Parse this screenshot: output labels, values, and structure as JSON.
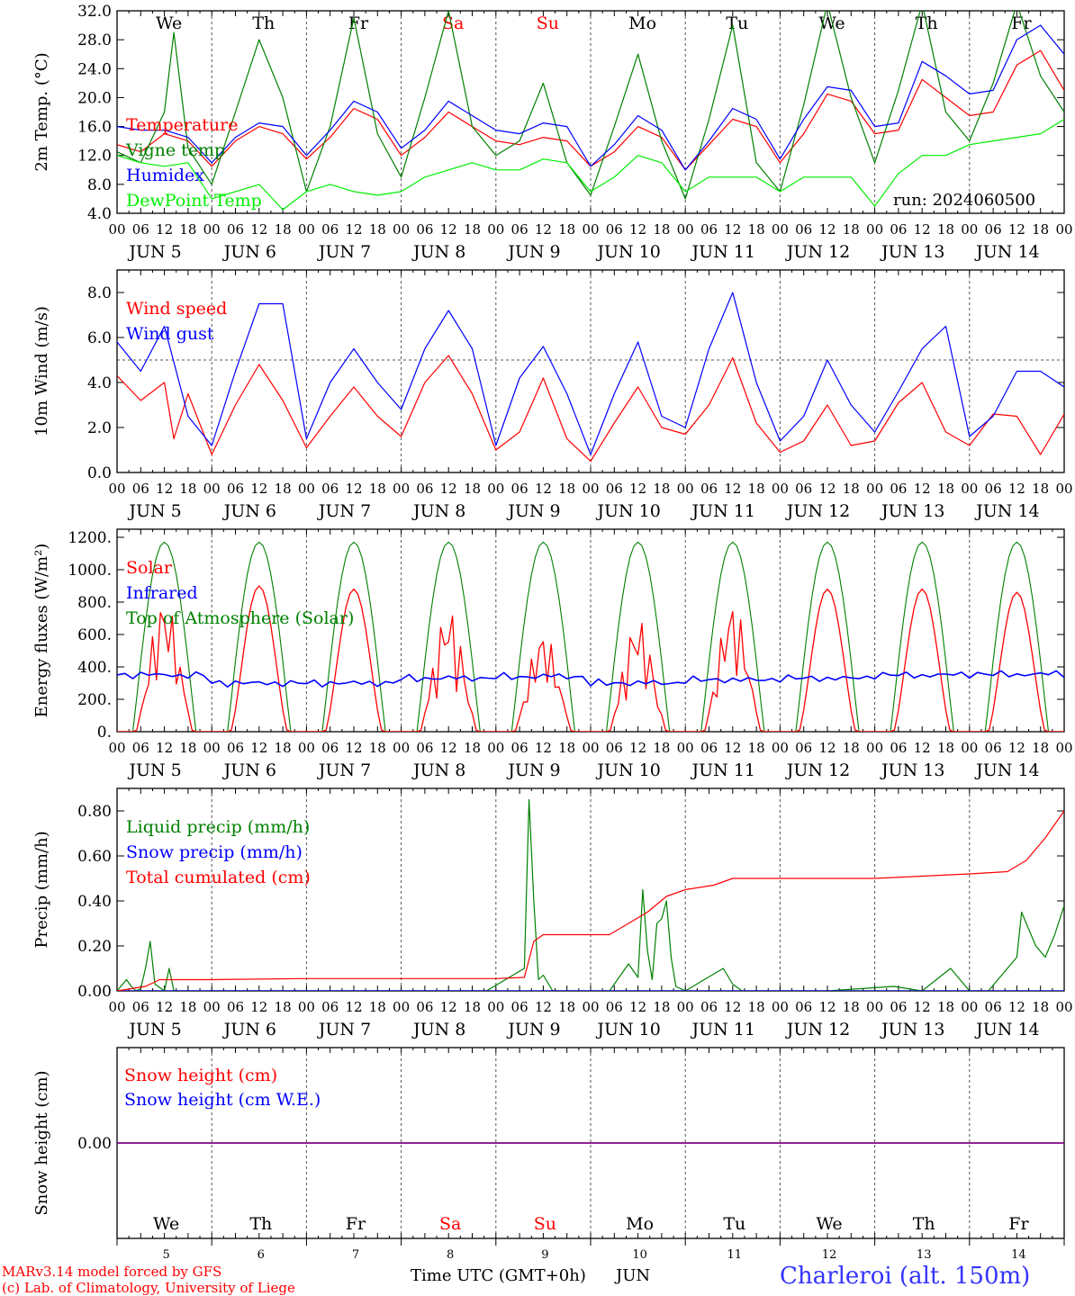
{
  "run_label": "run: 2024060500",
  "station": "Charleroi (alt. 150m)",
  "footer": {
    "line1": "MARv3.14 model forced by GFS",
    "line2": "(c) Lab. of Climatology, University of Liege"
  },
  "xaxis": {
    "hour_ticks": [
      "00",
      "06",
      "12",
      "18"
    ],
    "day_labels": [
      "JUN  5",
      "JUN  6",
      "JUN  7",
      "JUN  8",
      "JUN  9",
      "JUN 10",
      "JUN 11",
      "JUN 12",
      "JUN 13",
      "JUN 14"
    ],
    "weekdays": [
      "We",
      "Th",
      "Fr",
      "Sa",
      "Su",
      "Mo",
      "Tu",
      "We",
      "Th",
      "Fr"
    ],
    "weekend_idx": [
      3,
      4
    ],
    "day_numbers": [
      "5",
      "6",
      "7",
      "8",
      "9",
      "10",
      "11",
      "12",
      "13",
      "14"
    ],
    "bottom_title": "Time UTC (GMT+0h)",
    "month": "JUN"
  },
  "colors": {
    "red": "#ff0000",
    "green": "#008000",
    "blue": "#0000ff",
    "lime": "#00ee00",
    "purple": "#800080",
    "station": "#3333ff"
  },
  "chart_data": [
    {
      "type": "line",
      "ylabel": "2m Temp. (°C)",
      "ylim": [
        4,
        32
      ],
      "yticks": [
        "4.0",
        "8.0",
        "12.0",
        "16.0",
        "20.0",
        "24.0",
        "28.0",
        "32.0"
      ],
      "x_unit": "days since Jun 5 00 UTC",
      "series": [
        {
          "name": "Temperature",
          "color": "red",
          "x": [
            0,
            0.25,
            0.5,
            0.75,
            1,
            1.25,
            1.5,
            1.75,
            2,
            2.25,
            2.5,
            2.75,
            3,
            3.25,
            3.5,
            3.75,
            4,
            4.25,
            4.5,
            4.75,
            5,
            5.25,
            5.5,
            5.75,
            6,
            6.25,
            6.5,
            6.75,
            7,
            7.25,
            7.5,
            7.75,
            8,
            8.25,
            8.5,
            8.75,
            9,
            9.25,
            9.5,
            9.75,
            10
          ],
          "y": [
            13.5,
            12.5,
            15,
            14,
            10.5,
            14,
            16,
            15,
            11.5,
            14.5,
            18.5,
            17,
            12,
            14.5,
            18,
            16,
            14,
            13.5,
            14.5,
            14,
            10.5,
            12.5,
            16,
            14.5,
            10,
            13.5,
            17,
            16,
            11,
            15,
            20.5,
            19.5,
            15,
            15.5,
            22.5,
            20,
            17.5,
            18,
            24.5,
            26.5,
            21
          ]
        },
        {
          "name": "Vigne temp",
          "color": "green",
          "x": [
            0,
            0.25,
            0.5,
            0.6,
            0.75,
            1,
            1.25,
            1.5,
            1.75,
            2,
            2.25,
            2.5,
            2.75,
            3,
            3.25,
            3.5,
            3.75,
            4,
            4.25,
            4.5,
            4.75,
            5,
            5.25,
            5.5,
            5.75,
            6,
            6.25,
            6.5,
            6.75,
            7,
            7.25,
            7.5,
            7.75,
            8,
            8.25,
            8.5,
            8.75,
            9,
            9.25,
            9.5,
            9.75,
            10
          ],
          "y": [
            12.5,
            11,
            18,
            29,
            13,
            8,
            18,
            28,
            20,
            7,
            16,
            31,
            15,
            9,
            20,
            32,
            16,
            12,
            14,
            22,
            11,
            6.5,
            16,
            26,
            14,
            6,
            17,
            30,
            11,
            7,
            19,
            33,
            20,
            11,
            21,
            33,
            18,
            14,
            22,
            33,
            23,
            18
          ]
        },
        {
          "name": "Humidex",
          "color": "blue",
          "x": [
            0,
            0.25,
            0.5,
            0.75,
            1,
            1.25,
            1.5,
            1.75,
            2,
            2.25,
            2.5,
            2.75,
            3,
            3.25,
            3.5,
            3.75,
            4,
            4.25,
            4.5,
            4.75,
            5,
            5.25,
            5.5,
            5.75,
            6,
            6.25,
            6.5,
            6.75,
            7,
            7.25,
            7.5,
            7.75,
            8,
            8.25,
            8.5,
            8.75,
            9,
            9.25,
            9.5,
            9.75,
            10
          ],
          "y": [
            16,
            15.5,
            15.5,
            14.5,
            11,
            14.5,
            16.5,
            16,
            12,
            15.5,
            19.5,
            18,
            13,
            15.5,
            19.5,
            17.5,
            15.5,
            15,
            16.5,
            16,
            10.5,
            13.5,
            17.5,
            15.5,
            10,
            14,
            18.5,
            17,
            11.5,
            17,
            21.5,
            21,
            16,
            16.5,
            25,
            23,
            20.5,
            21,
            28,
            30,
            26
          ]
        },
        {
          "name": "DewPoint Temp",
          "color": "lime",
          "x": [
            0,
            0.25,
            0.5,
            0.75,
            1,
            1.25,
            1.5,
            1.75,
            2,
            2.25,
            2.5,
            2.75,
            3,
            3.25,
            3.5,
            3.75,
            4,
            4.25,
            4.5,
            4.75,
            5,
            5.25,
            5.5,
            5.75,
            6,
            6.25,
            6.5,
            6.75,
            7,
            7.25,
            7.5,
            7.75,
            8,
            8.25,
            8.5,
            8.75,
            9,
            9.25,
            9.5,
            9.75,
            10
          ],
          "y": [
            12,
            11,
            10.5,
            11,
            6,
            7,
            8,
            4.5,
            7,
            8,
            7,
            6.5,
            7,
            9,
            10,
            11,
            10,
            10,
            11.5,
            11,
            7,
            9,
            12,
            11,
            7,
            9,
            9,
            9,
            7,
            9,
            9,
            9,
            5,
            9.5,
            12,
            12,
            13.5,
            14,
            14.5,
            15,
            17
          ]
        }
      ]
    },
    {
      "type": "line",
      "ylabel": "10m Wind (m/s)",
      "ylim": [
        0,
        9
      ],
      "yticks": [
        "0.0",
        "2.0",
        "4.0",
        "6.0",
        "8.0"
      ],
      "ref_line": 5,
      "series": [
        {
          "name": "Wind speed",
          "color": "red",
          "x": [
            0,
            0.25,
            0.5,
            0.6,
            0.75,
            1,
            1.25,
            1.5,
            1.75,
            2,
            2.25,
            2.5,
            2.75,
            3,
            3.25,
            3.5,
            3.75,
            4,
            4.25,
            4.5,
            4.75,
            5,
            5.25,
            5.5,
            5.75,
            6,
            6.25,
            6.5,
            6.75,
            7,
            7.25,
            7.5,
            7.75,
            8,
            8.25,
            8.5,
            8.75,
            9,
            9.25,
            9.5,
            9.75,
            10
          ],
          "y": [
            4.3,
            3.2,
            4,
            1.5,
            3.5,
            0.8,
            3,
            4.8,
            3.2,
            1.1,
            2.5,
            3.8,
            2.5,
            1.6,
            4,
            5.2,
            3.5,
            1,
            1.8,
            4.2,
            1.5,
            0.5,
            2.2,
            3.8,
            2,
            1.7,
            3,
            5.1,
            2.2,
            0.9,
            1.4,
            3,
            1.2,
            1.4,
            3.1,
            4,
            1.8,
            1.2,
            2.6,
            2.5,
            0.8,
            2.6
          ]
        },
        {
          "name": "Wind gust",
          "color": "blue",
          "x": [
            0,
            0.25,
            0.5,
            0.75,
            1,
            1.25,
            1.5,
            1.75,
            2,
            2.25,
            2.5,
            2.75,
            3,
            3.25,
            3.5,
            3.75,
            4,
            4.25,
            4.5,
            4.75,
            5,
            5.25,
            5.5,
            5.75,
            6,
            6.25,
            6.5,
            6.75,
            7,
            7.25,
            7.5,
            7.75,
            8,
            8.25,
            8.5,
            8.75,
            9,
            9.25,
            9.5,
            9.75,
            10
          ],
          "y": [
            5.8,
            4.5,
            6.5,
            2.5,
            1.2,
            4.5,
            7.5,
            7.5,
            1.5,
            4,
            5.5,
            4,
            2.8,
            5.5,
            7.2,
            5.5,
            1.2,
            4.2,
            5.6,
            3.5,
            0.8,
            3.5,
            5.8,
            2.5,
            2,
            5.5,
            8,
            4,
            1.4,
            2.5,
            5,
            3,
            1.8,
            3.6,
            5.5,
            6.5,
            1.6,
            2.5,
            4.5,
            4.5,
            3.8
          ]
        }
      ]
    },
    {
      "type": "line",
      "ylabel": "Energy fluxes (W/m²)",
      "ylim": [
        0,
        1250
      ],
      "yticks": [
        "0.",
        "200.",
        "400.",
        "600.",
        "800.",
        "1000.",
        "1200."
      ],
      "series": [
        {
          "name": "Solar",
          "color": "red",
          "daily_peaks": [
            820,
            900,
            880,
            760,
            620,
            700,
            800,
            880,
            880,
            860
          ]
        },
        {
          "name": "Infrared",
          "color": "blue",
          "daily_mean": [
            350,
            300,
            300,
            330,
            340,
            300,
            320,
            330,
            350,
            355
          ]
        },
        {
          "name": "Top of Atmosphere (Solar)",
          "color": "green",
          "daily_peak": 1170
        }
      ]
    },
    {
      "type": "line",
      "ylabel": "Precip (mm/h)",
      "ylim": [
        0,
        0.9
      ],
      "yticks": [
        "0.00",
        "0.20",
        "0.40",
        "0.60",
        "0.80"
      ],
      "series": [
        {
          "name": "Liquid precip (mm/h)",
          "color": "green",
          "x": [
            0,
            0.1,
            0.15,
            0.2,
            0.25,
            0.3,
            0.35,
            0.4,
            0.5,
            0.55,
            0.6,
            3.9,
            4.3,
            4.35,
            4.4,
            4.45,
            4.5,
            4.6,
            5.2,
            5.4,
            5.5,
            5.55,
            5.6,
            5.65,
            5.7,
            5.75,
            5.8,
            5.85,
            5.9,
            6,
            6.2,
            6.4,
            6.5,
            6.6,
            7.5,
            8.2,
            8.5,
            8.8,
            9.0,
            9.2,
            9.4,
            9.5,
            9.55,
            9.6,
            9.7,
            9.8,
            9.9,
            10
          ],
          "y": [
            0,
            0.05,
            0.02,
            0,
            0.01,
            0.1,
            0.22,
            0.03,
            0,
            0.1,
            0,
            0,
            0.1,
            0.85,
            0.4,
            0.05,
            0.07,
            0,
            0,
            0.12,
            0.06,
            0.45,
            0.18,
            0.05,
            0.3,
            0.32,
            0.4,
            0.15,
            0.02,
            0,
            0.05,
            0.1,
            0.03,
            0,
            0,
            0.02,
            0,
            0.1,
            0,
            0,
            0.1,
            0.15,
            0.35,
            0.3,
            0.2,
            0.15,
            0.25,
            0.38
          ]
        },
        {
          "name": "Snow precip (mm/h)",
          "color": "blue",
          "x": [
            0,
            10
          ],
          "y": [
            0,
            0
          ]
        },
        {
          "name": "Total cumulated (cm)",
          "color": "red",
          "x": [
            0,
            0.3,
            0.4,
            0.45,
            1,
            2,
            3,
            3.9,
            4.0,
            4.3,
            4.4,
            4.5,
            5.0,
            5.2,
            5.4,
            5.6,
            5.8,
            6,
            6.3,
            6.5,
            7,
            8,
            8.5,
            9,
            9.4,
            9.6,
            9.8,
            10
          ],
          "y": [
            0,
            0.02,
            0.04,
            0.05,
            0.05,
            0.055,
            0.055,
            0.055,
            0.055,
            0.06,
            0.22,
            0.25,
            0.25,
            0.25,
            0.3,
            0.35,
            0.42,
            0.45,
            0.47,
            0.5,
            0.5,
            0.5,
            0.51,
            0.52,
            0.53,
            0.58,
            0.68,
            0.8
          ]
        }
      ]
    },
    {
      "type": "line",
      "ylabel": "Snow height (cm)",
      "ylim": [
        -1,
        1
      ],
      "yticks": [
        "0.00"
      ],
      "series": [
        {
          "name": "Snow height (cm)",
          "color": "red",
          "x": [
            0,
            10
          ],
          "y": [
            0,
            0
          ]
        },
        {
          "name": "Snow height (cm W.E.)",
          "color": "blue",
          "x": [
            0,
            10
          ],
          "y": [
            0,
            0
          ]
        }
      ]
    }
  ]
}
